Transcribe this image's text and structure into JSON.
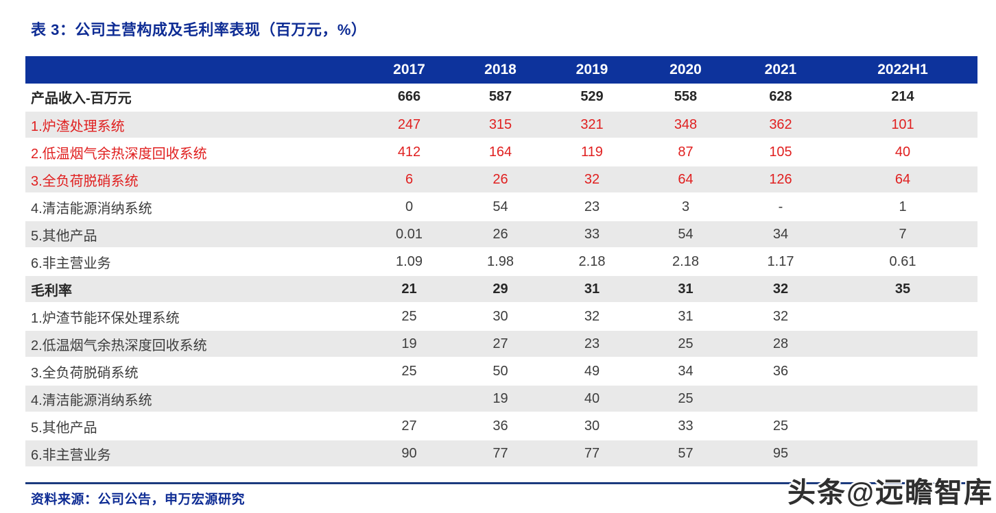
{
  "title": "表 3：公司主营构成及毛利率表现（百万元，%）",
  "source": "资料来源：公司公告，申万宏源研究",
  "watermark": "头条@远瞻智库",
  "colors": {
    "header_bg": "#0D339C",
    "title_text": "#0E2C94",
    "red_text": "#E01F1F",
    "stripe_bg": "#E9E9E9",
    "bottom_line": "#1B3A7E"
  },
  "chart_data": {
    "type": "table",
    "columns": [
      "",
      "2017",
      "2018",
      "2019",
      "2020",
      "2021",
      "2022H1"
    ],
    "rows": [
      {
        "label": "产品收入-百万元",
        "values": [
          "666",
          "587",
          "529",
          "558",
          "628",
          "214"
        ],
        "style": "bold"
      },
      {
        "label": "1.炉渣处理系统",
        "values": [
          "247",
          "315",
          "321",
          "348",
          "362",
          "101"
        ],
        "style": "red"
      },
      {
        "label": "2.低温烟气余热深度回收系统",
        "values": [
          "412",
          "164",
          "119",
          "87",
          "105",
          "40"
        ],
        "style": "red"
      },
      {
        "label": "3.全负荷脱硝系统",
        "values": [
          "6",
          "26",
          "32",
          "64",
          "126",
          "64"
        ],
        "style": "red"
      },
      {
        "label": "4.清洁能源消纳系统",
        "values": [
          "0",
          "54",
          "23",
          "3",
          "-",
          "1"
        ],
        "style": "normal"
      },
      {
        "label": "5.其他产品",
        "values": [
          "0.01",
          "26",
          "33",
          "54",
          "34",
          "7"
        ],
        "style": "normal"
      },
      {
        "label": "6.非主营业务",
        "values": [
          "1.09",
          "1.98",
          "2.18",
          "2.18",
          "1.17",
          "0.61"
        ],
        "style": "normal"
      },
      {
        "label": "毛利率",
        "values": [
          "21",
          "29",
          "31",
          "31",
          "32",
          "35"
        ],
        "style": "bold"
      },
      {
        "label": "1.炉渣节能环保处理系统",
        "values": [
          "25",
          "30",
          "32",
          "31",
          "32",
          ""
        ],
        "style": "normal"
      },
      {
        "label": "2.低温烟气余热深度回收系统",
        "values": [
          "19",
          "27",
          "23",
          "25",
          "28",
          ""
        ],
        "style": "normal"
      },
      {
        "label": "3.全负荷脱硝系统",
        "values": [
          "25",
          "50",
          "49",
          "34",
          "36",
          ""
        ],
        "style": "normal"
      },
      {
        "label": "4.清洁能源消纳系统",
        "values": [
          "",
          "19",
          "40",
          "25",
          "",
          ""
        ],
        "style": "normal"
      },
      {
        "label": "5.其他产品",
        "values": [
          "27",
          "36",
          "30",
          "33",
          "25",
          ""
        ],
        "style": "normal"
      },
      {
        "label": "6.非主营业务",
        "values": [
          "90",
          "77",
          "77",
          "57",
          "95",
          ""
        ],
        "style": "normal"
      }
    ]
  }
}
